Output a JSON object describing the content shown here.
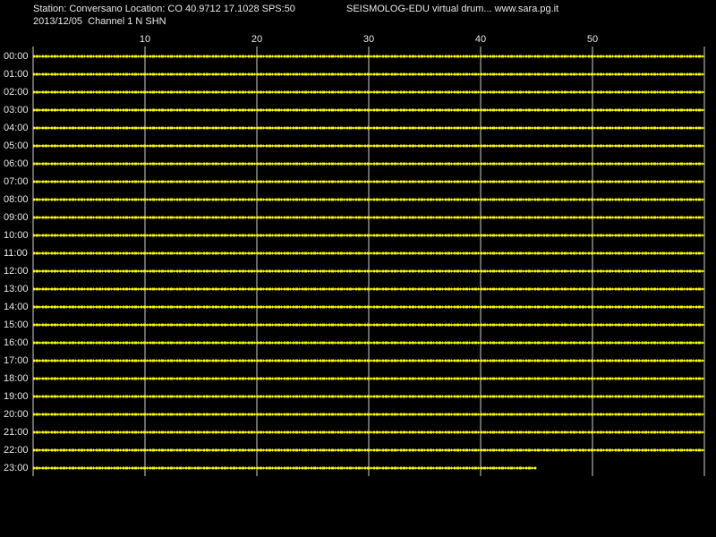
{
  "chart_data": {
    "type": "drum",
    "title": "Station: Conversano Location: CO 40.9712 17.1028 SPS:50",
    "subtitle": "2013/12/05  Channel 1 N SHN",
    "header_right": "SEISMOLOG-EDU virtual drum... www.sara.pg.it",
    "categories": [
      "00:00",
      "01:00",
      "02:00",
      "03:00",
      "04:00",
      "05:00",
      "06:00",
      "07:00",
      "08:00",
      "09:00",
      "10:00",
      "11:00",
      "12:00",
      "13:00",
      "14:00",
      "15:00",
      "16:00",
      "17:00",
      "18:00",
      "19:00",
      "20:00",
      "21:00",
      "22:00",
      "23:00"
    ],
    "values": [
      60,
      60,
      60,
      60,
      60,
      60,
      60,
      60,
      60,
      60,
      60,
      60,
      60,
      60,
      60,
      60,
      60,
      60,
      60,
      60,
      60,
      60,
      60,
      45
    ],
    "color": "#ffff00",
    "xlim": [
      0,
      60
    ],
    "xticks": [
      10,
      20,
      30,
      40,
      50
    ],
    "grid": true
  }
}
